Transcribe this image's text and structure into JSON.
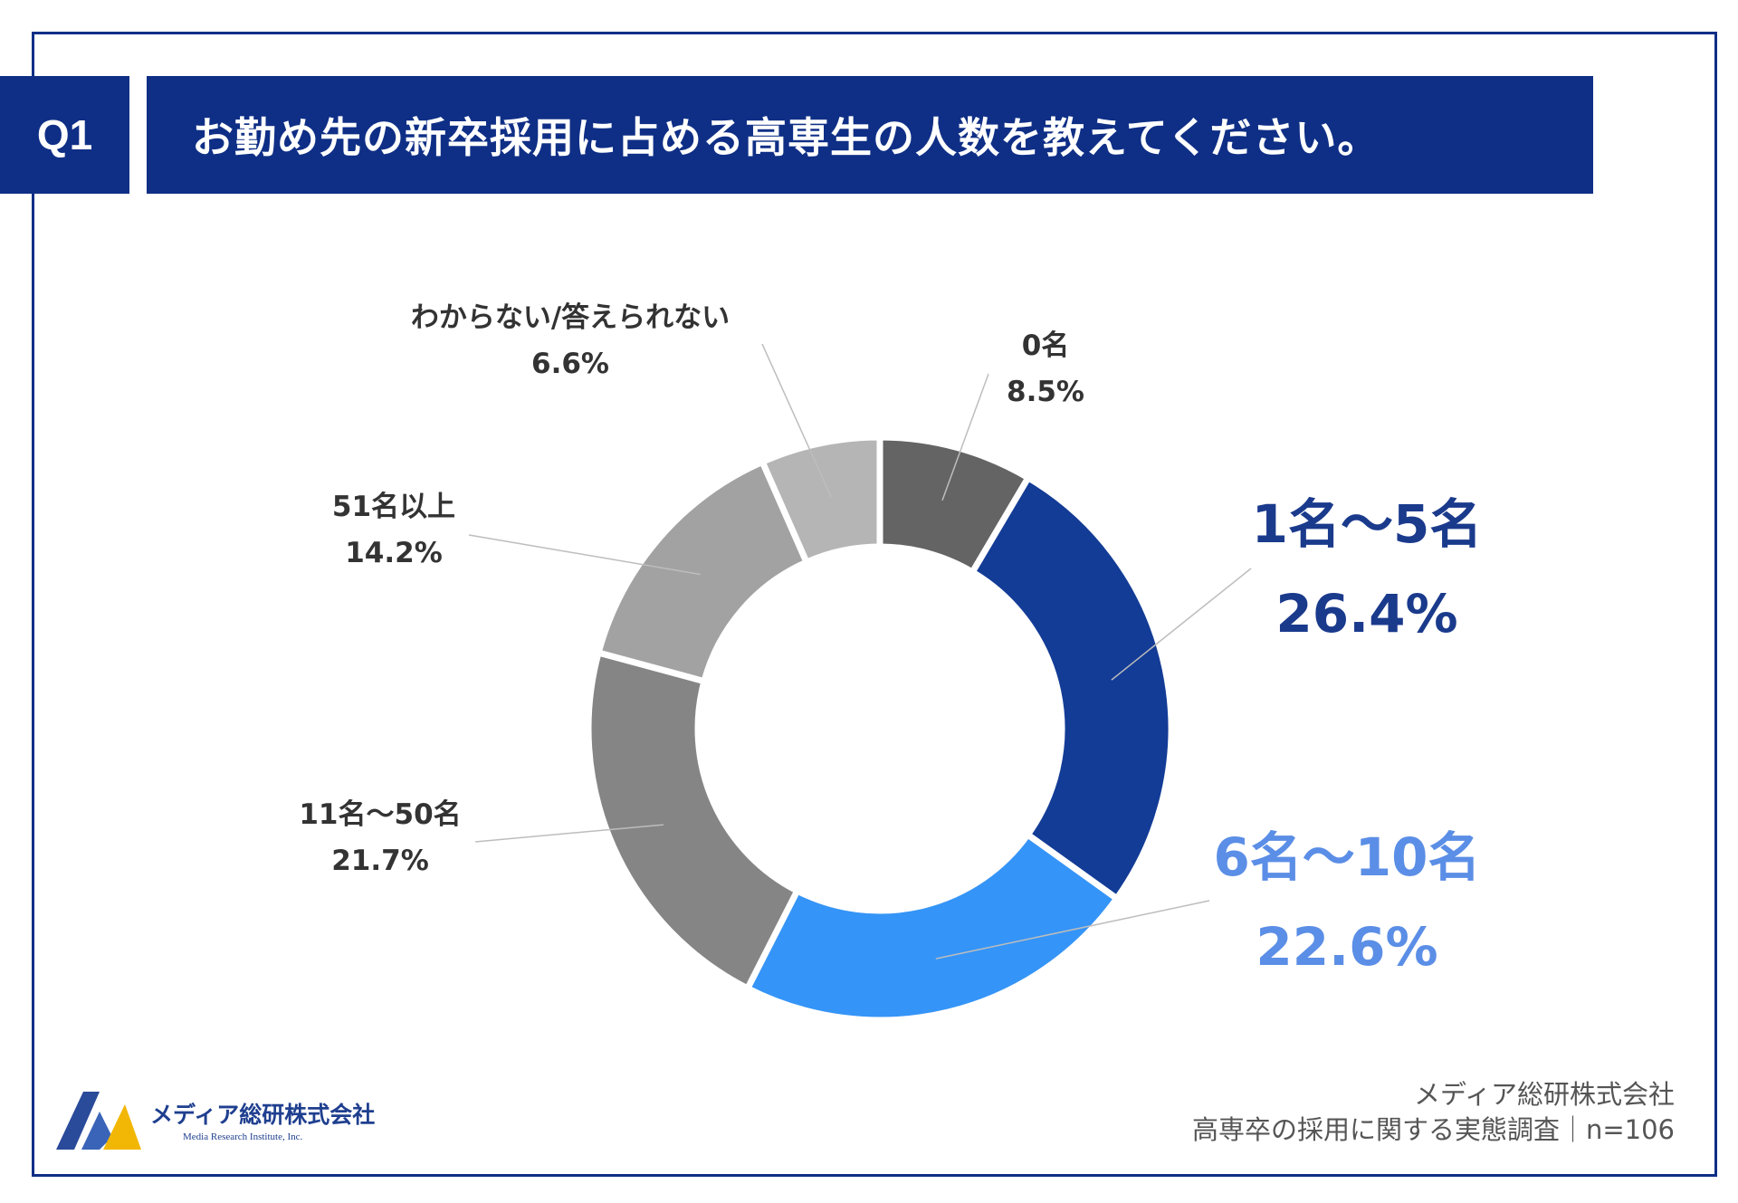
{
  "header": {
    "badge": "Q1",
    "question": "お勤め先の新卒採用に占める高専生の人数を教えてください。"
  },
  "chart_data": {
    "type": "pie",
    "variant": "donut",
    "start_angle_deg": 0,
    "direction": "clockwise",
    "slices": [
      {
        "label": "0名",
        "value": 8.5,
        "display": "8.5%",
        "color": "#646464",
        "label_color": "#333333",
        "emphasis": false
      },
      {
        "label": "1名〜5名",
        "value": 26.4,
        "display": "26.4%",
        "color": "#133c96",
        "label_color": "#1a3a8c",
        "emphasis": true
      },
      {
        "label": "6名〜10名",
        "value": 22.6,
        "display": "22.6%",
        "color": "#3594f7",
        "label_color": "#5b8ee6",
        "emphasis": true
      },
      {
        "label": "11名〜50名",
        "value": 21.7,
        "display": "21.7%",
        "color": "#858585",
        "label_color": "#333333",
        "emphasis": false
      },
      {
        "label": "51名以上",
        "value": 14.2,
        "display": "14.2%",
        "color": "#a2a2a2",
        "label_color": "#333333",
        "emphasis": false
      },
      {
        "label": "わからない/答えられない",
        "value": 6.6,
        "display": "6.6%",
        "color": "#b5b5b5",
        "label_color": "#333333",
        "emphasis": false
      }
    ]
  },
  "logo": {
    "name": "メディア総研株式会社",
    "subtitle": "Media Research Institute, Inc."
  },
  "source": {
    "company": "メディア総研株式会社",
    "survey": "高専卒の採用に関する実態調査｜n=106"
  }
}
